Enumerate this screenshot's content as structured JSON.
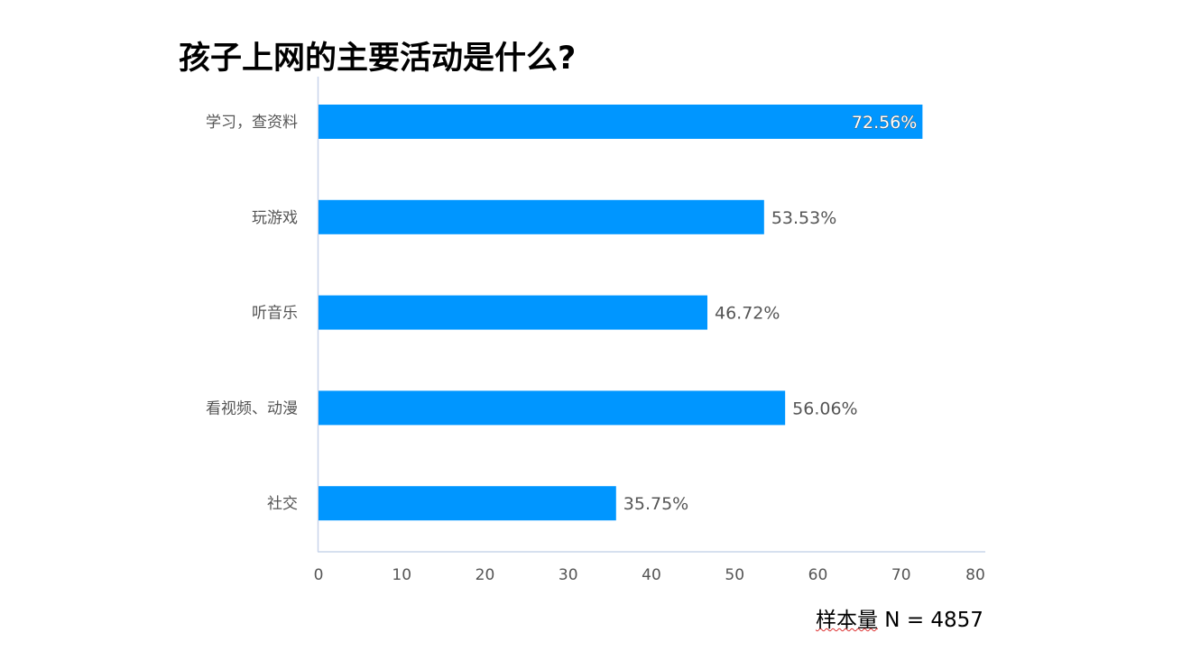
{
  "chart_data": {
    "type": "bar",
    "orientation": "horizontal",
    "title": "孩子上网的主要活动是什么?",
    "categories": [
      "学习，查资料",
      "玩游戏",
      "听音乐",
      "看视频、动漫",
      "社交"
    ],
    "values": [
      72.56,
      53.53,
      46.72,
      56.06,
      35.75
    ],
    "data_labels": [
      "72.56%",
      "53.53%",
      "46.72%",
      "56.06%",
      "35.75%"
    ],
    "xlim": [
      0,
      80
    ],
    "xticks": [
      "0",
      "10",
      "20",
      "30",
      "40",
      "50",
      "60",
      "70",
      "80"
    ],
    "xlabel": "",
    "ylabel": "",
    "grid": false,
    "bar_color": "#0096FF"
  },
  "footer": {
    "sample_label": "样本量",
    "sample_value": " N = 4857"
  }
}
